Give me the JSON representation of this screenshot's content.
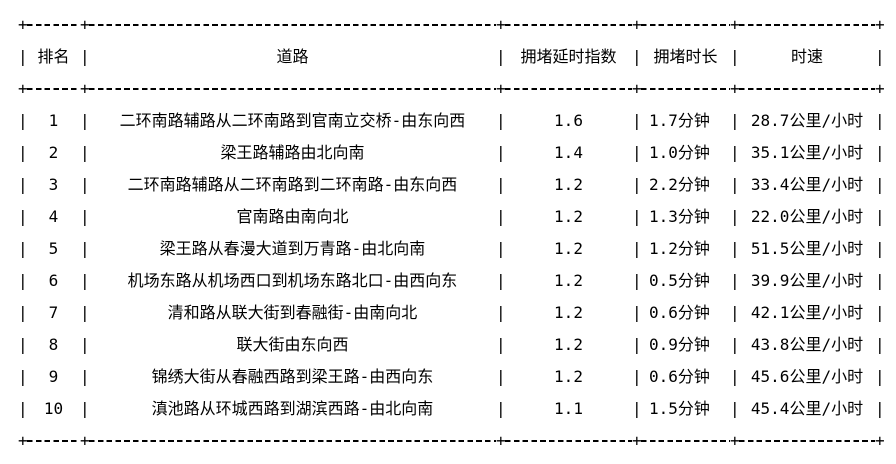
{
  "colors": {
    "text": "#000000",
    "background": "#ffffff"
  },
  "table": {
    "columns": [
      "排名",
      "道路",
      "拥堵延时指数",
      "拥堵时长",
      "时速"
    ],
    "rows": [
      [
        "1",
        "二环南路辅路从二环南路到官南立交桥-由东向西",
        "1.6",
        "1.7分钟",
        "28.7公里/小时"
      ],
      [
        "2",
        "梁王路辅路由北向南",
        "1.4",
        "1.0分钟",
        "35.1公里/小时"
      ],
      [
        "3",
        "二环南路辅路从二环南路到二环南路-由东向西",
        "1.2",
        "2.2分钟",
        "33.4公里/小时"
      ],
      [
        "4",
        "官南路由南向北",
        "1.2",
        "1.3分钟",
        "22.0公里/小时"
      ],
      [
        "5",
        "梁王路从春漫大道到万青路-由北向南",
        "1.2",
        "1.2分钟",
        "51.5公里/小时"
      ],
      [
        "6",
        "机场东路从机场西口到机场东路北口-由西向东",
        "1.2",
        "0.5分钟",
        "39.9公里/小时"
      ],
      [
        "7",
        "清和路从联大街到春融街-由南向北",
        "1.2",
        "0.6分钟",
        "42.1公里/小时"
      ],
      [
        "8",
        "联大街由东向西",
        "1.2",
        "0.9分钟",
        "43.8公里/小时"
      ],
      [
        "9",
        "锦绣大街从春融西路到梁王路-由西向东",
        "1.2",
        "0.6分钟",
        "45.6公里/小时"
      ],
      [
        "10",
        "滇池路从环城西路到湖滨西路-由北向南",
        "1.1",
        "1.5分钟",
        "45.4公里/小时"
      ]
    ]
  }
}
